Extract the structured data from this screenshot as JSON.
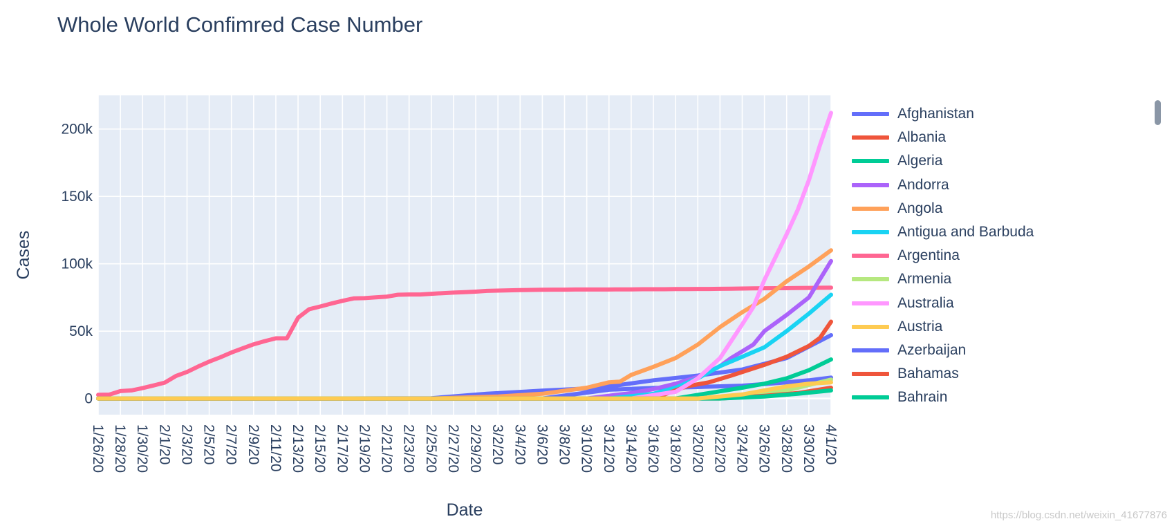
{
  "chart_data": {
    "type": "line",
    "title": "Whole World Confimred Case Number",
    "xlabel": "Date",
    "ylabel": "Cases",
    "ylim": [
      -12000,
      225000
    ],
    "yticks": [
      0,
      50000,
      100000,
      150000,
      200000
    ],
    "ytick_labels": [
      "0",
      "50k",
      "100k",
      "150k",
      "200k"
    ],
    "grid": true,
    "legend_position": "right",
    "x": [
      "1/26/20",
      "1/27/20",
      "1/28/20",
      "1/29/20",
      "1/30/20",
      "1/31/20",
      "2/1/20",
      "2/2/20",
      "2/3/20",
      "2/4/20",
      "2/5/20",
      "2/6/20",
      "2/7/20",
      "2/8/20",
      "2/9/20",
      "2/10/20",
      "2/11/20",
      "2/12/20",
      "2/13/20",
      "2/14/20",
      "2/15/20",
      "2/16/20",
      "2/17/20",
      "2/18/20",
      "2/19/20",
      "2/20/20",
      "2/21/20",
      "2/22/20",
      "2/23/20",
      "2/24/20",
      "2/25/20",
      "2/26/20",
      "2/27/20",
      "2/28/20",
      "2/29/20",
      "3/1/20",
      "3/2/20",
      "3/3/20",
      "3/4/20",
      "3/5/20",
      "3/6/20",
      "3/7/20",
      "3/8/20",
      "3/9/20",
      "3/10/20",
      "3/11/20",
      "3/12/20",
      "3/13/20",
      "3/14/20",
      "3/15/20",
      "3/16/20",
      "3/17/20",
      "3/18/20",
      "3/19/20",
      "3/20/20",
      "3/21/20",
      "3/22/20",
      "3/23/20",
      "3/24/20",
      "3/25/20",
      "3/26/20",
      "3/27/20",
      "3/28/20",
      "3/29/20",
      "3/30/20",
      "3/31/20",
      "4/1/20"
    ],
    "x_tick_labels": [
      "1/26/20",
      "1/28/20",
      "1/30/20",
      "2/1/20",
      "2/3/20",
      "2/5/20",
      "2/7/20",
      "2/9/20",
      "2/11/20",
      "2/13/20",
      "2/15/20",
      "2/17/20",
      "2/19/20",
      "2/21/20",
      "2/23/20",
      "2/25/20",
      "2/27/20",
      "2/29/20",
      "3/2/20",
      "3/4/20",
      "3/6/20",
      "3/8/20",
      "3/10/20",
      "3/12/20",
      "3/14/20",
      "3/16/20",
      "3/18/20",
      "3/20/20",
      "3/22/20",
      "3/24/20",
      "3/26/20",
      "3/28/20",
      "3/30/20",
      "4/1/20"
    ],
    "series": [
      {
        "name": "Argentina",
        "color": "#FF6692",
        "points": [
          [
            0,
            2700
          ],
          [
            1,
            2900
          ],
          [
            2,
            5500
          ],
          [
            3,
            6000
          ],
          [
            4,
            7700
          ],
          [
            5,
            9700
          ],
          [
            6,
            11800
          ],
          [
            7,
            16700
          ],
          [
            8,
            19700
          ],
          [
            9,
            23700
          ],
          [
            10,
            27400
          ],
          [
            11,
            30600
          ],
          [
            12,
            34100
          ],
          [
            13,
            37200
          ],
          [
            14,
            40200
          ],
          [
            15,
            42600
          ],
          [
            16,
            44700
          ],
          [
            17,
            44700
          ],
          [
            18,
            59900
          ],
          [
            19,
            66300
          ],
          [
            20,
            68300
          ],
          [
            21,
            70500
          ],
          [
            22,
            72500
          ],
          [
            23,
            74300
          ],
          [
            24,
            74500
          ],
          [
            25,
            75100
          ],
          [
            26,
            75600
          ],
          [
            27,
            77000
          ],
          [
            28,
            77200
          ],
          [
            29,
            77200
          ],
          [
            30,
            77700
          ],
          [
            31,
            78200
          ],
          [
            32,
            78600
          ],
          [
            33,
            78900
          ],
          [
            34,
            79300
          ],
          [
            35,
            79900
          ],
          [
            36,
            80100
          ],
          [
            37,
            80300
          ],
          [
            38,
            80500
          ],
          [
            39,
            80600
          ],
          [
            40,
            80700
          ],
          [
            41,
            80800
          ],
          [
            42,
            80800
          ],
          [
            43,
            80900
          ],
          [
            44,
            80900
          ],
          [
            45,
            80900
          ],
          [
            46,
            80900
          ],
          [
            47,
            81000
          ],
          [
            48,
            81000
          ],
          [
            49,
            81100
          ],
          [
            50,
            81100
          ],
          [
            51,
            81100
          ],
          [
            52,
            81200
          ],
          [
            53,
            81200
          ],
          [
            54,
            81300
          ],
          [
            55,
            81300
          ],
          [
            56,
            81400
          ],
          [
            57,
            81500
          ],
          [
            58,
            81600
          ],
          [
            59,
            81700
          ],
          [
            60,
            81800
          ],
          [
            61,
            81900
          ],
          [
            62,
            81900
          ],
          [
            63,
            82000
          ],
          [
            64,
            82100
          ],
          [
            65,
            82200
          ],
          [
            66,
            82300
          ]
        ]
      },
      {
        "name": "Azerbaijan",
        "color": "#636EFA",
        "points": [
          [
            0,
            0
          ],
          [
            20,
            0
          ],
          [
            30,
            200
          ],
          [
            35,
            3500
          ],
          [
            40,
            5800
          ],
          [
            45,
            7800
          ],
          [
            50,
            13500
          ],
          [
            54,
            17000
          ],
          [
            58,
            21500
          ],
          [
            62,
            30000
          ],
          [
            66,
            47000
          ]
        ]
      },
      {
        "name": "Afghanistan",
        "color": "#636EFA",
        "points": [
          [
            0,
            0
          ],
          [
            40,
            0
          ],
          [
            46,
            6500
          ],
          [
            50,
            7800
          ],
          [
            54,
            8500
          ],
          [
            58,
            9500
          ],
          [
            62,
            12000
          ],
          [
            64,
            13500
          ],
          [
            66,
            15500
          ]
        ]
      },
      {
        "name": "Angola",
        "color": "#FFA15A",
        "points": [
          [
            0,
            0
          ],
          [
            30,
            0
          ],
          [
            36,
            1500
          ],
          [
            40,
            3500
          ],
          [
            44,
            8000
          ],
          [
            46,
            12000
          ],
          [
            47,
            12500
          ],
          [
            48,
            17500
          ],
          [
            50,
            23500
          ],
          [
            52,
            30000
          ],
          [
            53,
            35000
          ],
          [
            54,
            40000
          ],
          [
            56,
            53000
          ],
          [
            58,
            64000
          ],
          [
            60,
            74000
          ],
          [
            62,
            87000
          ],
          [
            64,
            98000
          ],
          [
            66,
            110000
          ]
        ]
      },
      {
        "name": "Andorra",
        "color": "#AB63FA",
        "points": [
          [
            0,
            0
          ],
          [
            44,
            0
          ],
          [
            48,
            4000
          ],
          [
            50,
            7000
          ],
          [
            52,
            11000
          ],
          [
            54,
            16000
          ],
          [
            56,
            24000
          ],
          [
            57,
            30000
          ],
          [
            58,
            35000
          ],
          [
            59,
            40000
          ],
          [
            60,
            50000
          ],
          [
            62,
            62000
          ],
          [
            64,
            75000
          ],
          [
            66,
            102000
          ]
        ]
      },
      {
        "name": "Antigua and Barbuda",
        "color": "#19D3F3",
        "points": [
          [
            0,
            0
          ],
          [
            46,
            0
          ],
          [
            50,
            3500
          ],
          [
            52,
            8000
          ],
          [
            54,
            15000
          ],
          [
            56,
            24000
          ],
          [
            58,
            31000
          ],
          [
            60,
            38000
          ],
          [
            62,
            50000
          ],
          [
            64,
            63000
          ],
          [
            66,
            77000
          ]
        ]
      },
      {
        "name": "Bahamas",
        "color": "#EF553B",
        "points": [
          [
            0,
            0
          ],
          [
            50,
            0
          ],
          [
            53,
            9000
          ],
          [
            55,
            12000
          ],
          [
            57,
            17000
          ],
          [
            60,
            25000
          ],
          [
            62,
            31000
          ],
          [
            64,
            39000
          ],
          [
            65,
            45000
          ],
          [
            66,
            57000
          ]
        ]
      },
      {
        "name": "Bahrain",
        "color": "#00CC96",
        "points": [
          [
            0,
            0
          ],
          [
            52,
            0
          ],
          [
            55,
            4000
          ],
          [
            58,
            8000
          ],
          [
            60,
            11000
          ],
          [
            62,
            15000
          ],
          [
            64,
            21000
          ],
          [
            66,
            29000
          ]
        ]
      },
      {
        "name": "Australia",
        "color": "#FF97FF",
        "points": [
          [
            0,
            0
          ],
          [
            48,
            0
          ],
          [
            52,
            5000
          ],
          [
            54,
            15000
          ],
          [
            56,
            30000
          ],
          [
            58,
            55000
          ],
          [
            59,
            68000
          ],
          [
            60,
            88000
          ],
          [
            61,
            105000
          ],
          [
            62,
            122000
          ],
          [
            63,
            140000
          ],
          [
            64,
            162000
          ],
          [
            65,
            188000
          ],
          [
            66,
            212000
          ]
        ]
      },
      {
        "name": "Armenia",
        "color": "#B6E880",
        "points": [
          [
            0,
            0
          ],
          [
            54,
            0
          ],
          [
            58,
            2000
          ],
          [
            62,
            6000
          ],
          [
            64,
            10000
          ],
          [
            66,
            14000
          ]
        ]
      },
      {
        "name": "Albania",
        "color": "#EF553B",
        "points": [
          [
            0,
            0
          ],
          [
            56,
            0
          ],
          [
            60,
            2000
          ],
          [
            63,
            4000
          ],
          [
            66,
            8000
          ]
        ]
      },
      {
        "name": "Algeria",
        "color": "#00CC96",
        "points": [
          [
            0,
            0
          ],
          [
            56,
            0
          ],
          [
            60,
            1500
          ],
          [
            63,
            3500
          ],
          [
            66,
            6000
          ]
        ]
      },
      {
        "name": "Austria",
        "color": "#FECB52",
        "points": [
          [
            0,
            0
          ],
          [
            54,
            0
          ],
          [
            58,
            3000
          ],
          [
            60,
            6000
          ],
          [
            62,
            9000
          ],
          [
            64,
            11000
          ],
          [
            66,
            12000
          ]
        ]
      }
    ]
  },
  "legend": {
    "items": [
      {
        "label": "Afghanistan",
        "color": "#636EFA"
      },
      {
        "label": "Albania",
        "color": "#EF553B"
      },
      {
        "label": "Algeria",
        "color": "#00CC96"
      },
      {
        "label": "Andorra",
        "color": "#AB63FA"
      },
      {
        "label": "Angola",
        "color": "#FFA15A"
      },
      {
        "label": "Antigua and Barbuda",
        "color": "#19D3F3"
      },
      {
        "label": "Argentina",
        "color": "#FF6692"
      },
      {
        "label": "Armenia",
        "color": "#B6E880"
      },
      {
        "label": "Australia",
        "color": "#FF97FF"
      },
      {
        "label": "Austria",
        "color": "#FECB52"
      },
      {
        "label": "Azerbaijan",
        "color": "#636EFA"
      },
      {
        "label": "Bahamas",
        "color": "#EF553B"
      },
      {
        "label": "Bahrain",
        "color": "#00CC96"
      }
    ]
  },
  "watermark": "https://blog.csdn.net/weixin_41677876"
}
